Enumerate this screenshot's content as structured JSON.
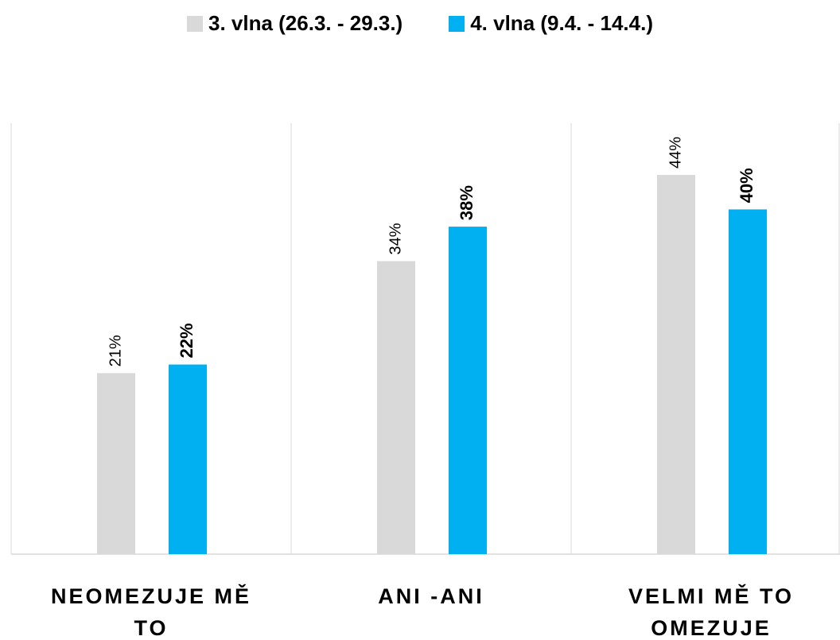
{
  "chart_data": {
    "type": "bar",
    "categories": [
      "NEOMEZUJE MĚ TO",
      "ANI -ANI",
      "VELMI MĚ TO OMEZUJE"
    ],
    "series": [
      {
        "name": "3. vlna (26.3. - 29.3.)",
        "color": "#d9d9d9",
        "values": [
          21,
          34,
          44
        ],
        "value_labels": [
          "21%",
          "34%",
          "44%"
        ]
      },
      {
        "name": "4. vlna (9.4. - 14.4.)",
        "color": "#00b0f0",
        "values": [
          22,
          38,
          40
        ],
        "value_labels": [
          "22%",
          "38%",
          "40%"
        ]
      }
    ],
    "ylim": [
      0,
      50
    ],
    "legend": "top"
  }
}
